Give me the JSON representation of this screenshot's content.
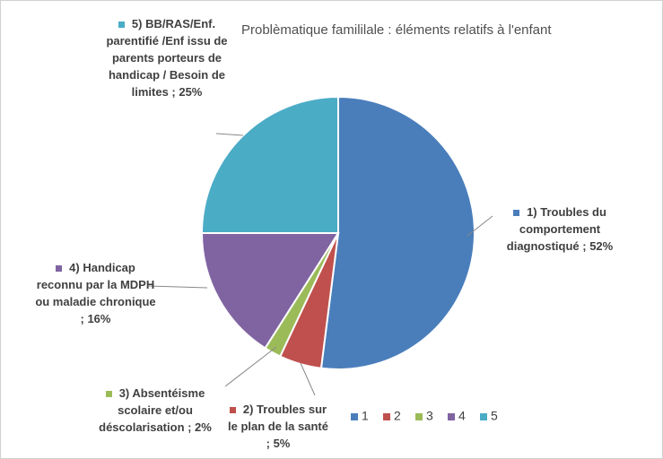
{
  "chart_data": {
    "type": "pie",
    "title": "Problèmatique famililale : éléments relatifs à l'enfant",
    "categories": [
      "1",
      "2",
      "3",
      "4",
      "5"
    ],
    "values": [
      52,
      5,
      2,
      16,
      25
    ],
    "value_labels": [
      "1) Troubles du comportement diagnostiqué ; 52%",
      "2) Troubles sur le plan de la santé ; 5%",
      "3) Absentéisme scolaire et/ou déscolarisation ; 2%",
      "4) Handicap reconnu par la MDPH ou maladie chronique ; 16%",
      "5) BB/RAS/Enf. parentifié /Enf issu de parents porteurs de handicap / Besoin de limites ; 25%"
    ],
    "colors": [
      "#4a7ebb",
      "#c0504d",
      "#9bbb59",
      "#8064a2",
      "#4bacc6"
    ],
    "legend": "bottom-right"
  }
}
